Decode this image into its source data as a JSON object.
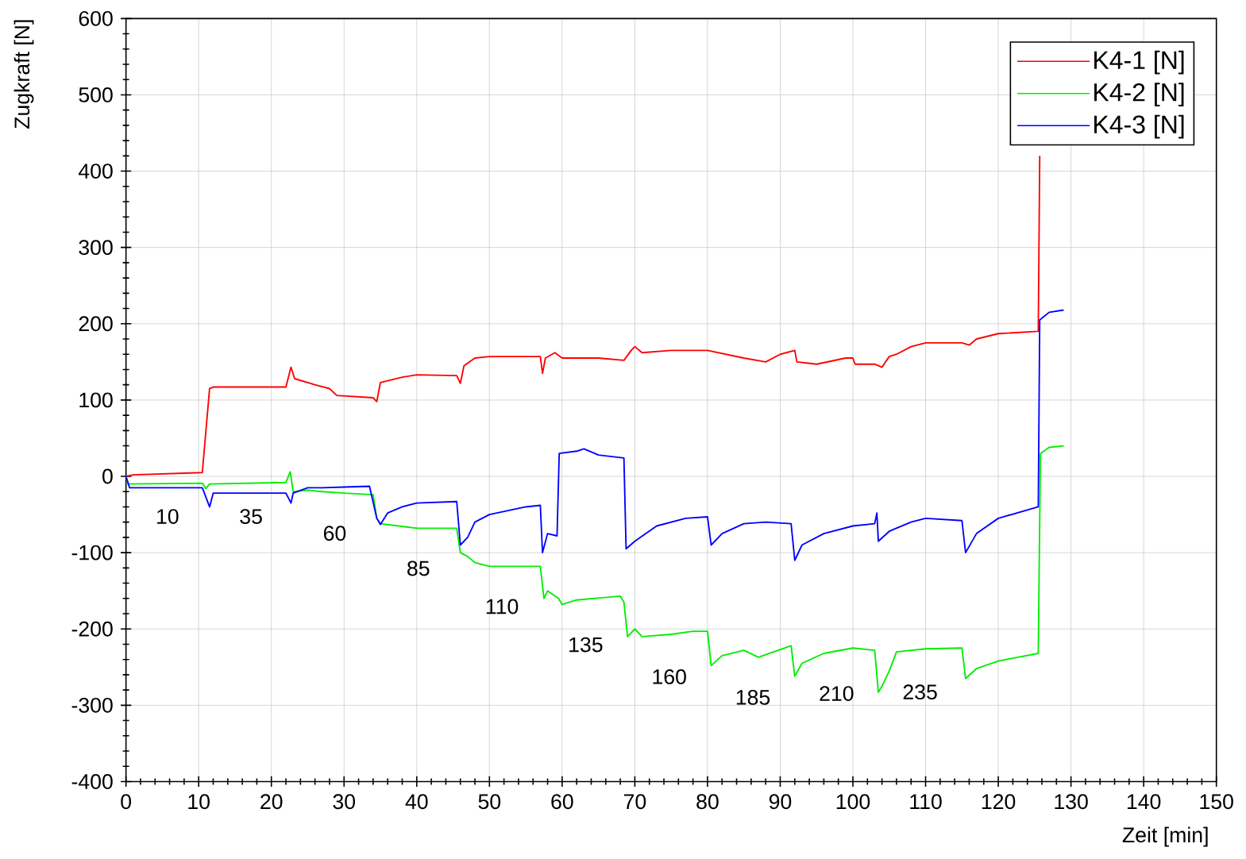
{
  "chart_data": {
    "type": "line",
    "xlabel": "Zeit [min]",
    "ylabel": "Zugkraft [N]",
    "xlim": [
      0,
      150
    ],
    "xticks": [
      0,
      10,
      20,
      30,
      40,
      50,
      60,
      70,
      80,
      90,
      100,
      110,
      120,
      130,
      140,
      150
    ],
    "ylim": [
      -400,
      600
    ],
    "yticks": [
      -400,
      -300,
      -200,
      -100,
      0,
      100,
      200,
      300,
      400,
      500,
      600
    ],
    "grid": true,
    "legend": "top right",
    "line_style": "solid",
    "marker": "none",
    "series": [
      {
        "name": "K4-1 [N]",
        "color": "#ff0000",
        "x": [
          0,
          1,
          10.5,
          11.5,
          12,
          22,
          22.7,
          23.2,
          26,
          28,
          29,
          34,
          34.5,
          35,
          38,
          40,
          45.5,
          46,
          46.5,
          48,
          50,
          57,
          57.3,
          57.7,
          59,
          60,
          65,
          68.5,
          69.5,
          70,
          71,
          75,
          80,
          85,
          88,
          90,
          92,
          92.3,
          95,
          99,
          100,
          100.3,
          103,
          104,
          105,
          106,
          108,
          110,
          115,
          116,
          117,
          120,
          125.5,
          125.7
        ],
        "values": [
          0,
          2,
          5,
          115,
          117,
          117,
          143,
          128,
          120,
          115,
          106,
          103,
          98,
          123,
          130,
          133,
          132,
          122,
          145,
          155,
          157,
          157,
          135,
          155,
          162,
          155,
          155,
          152,
          165,
          170,
          162,
          165,
          165,
          155,
          150,
          160,
          165,
          150,
          147,
          155,
          155,
          147,
          147,
          143,
          157,
          160,
          170,
          175,
          175,
          172,
          180,
          187,
          190,
          420
        ]
      },
      {
        "name": "K4-2 [N]",
        "color": "#00ee00",
        "x": [
          0,
          0.3,
          10.5,
          11,
          11.5,
          22,
          22.6,
          23,
          25,
          27,
          30,
          34,
          34.5,
          35,
          40,
          45.5,
          46,
          47,
          48,
          50,
          57,
          57.5,
          58,
          59.5,
          60,
          62,
          68,
          68.5,
          69,
          70,
          71,
          75,
          78,
          80,
          80.5,
          82,
          85,
          87,
          91.5,
          92,
          93,
          96,
          100,
          103,
          103.5,
          104,
          105,
          106,
          110,
          115,
          115.5,
          117,
          120,
          125.5,
          125.8,
          127,
          129
        ],
        "values": [
          0,
          -10,
          -9,
          -16,
          -10,
          -8,
          6,
          -20,
          -18,
          -20,
          -22,
          -24,
          -55,
          -62,
          -68,
          -68,
          -100,
          -105,
          -113,
          -118,
          -118,
          -160,
          -150,
          -160,
          -168,
          -162,
          -157,
          -165,
          -210,
          -200,
          -210,
          -207,
          -203,
          -203,
          -248,
          -235,
          -228,
          -237,
          -222,
          -262,
          -245,
          -232,
          -225,
          -228,
          -283,
          -275,
          -255,
          -230,
          -226,
          -225,
          -265,
          -252,
          -242,
          -232,
          30,
          38,
          40
        ]
      },
      {
        "name": "K4-3 [N]",
        "color": "#0000ff",
        "x": [
          0,
          0.5,
          10.5,
          11.5,
          12,
          22,
          22.7,
          23,
          25,
          27,
          30,
          33.5,
          34.5,
          35,
          36,
          38,
          40,
          45.5,
          46,
          47,
          48,
          50,
          55,
          57,
          57.3,
          58,
          59.3,
          59.6,
          62,
          63,
          65,
          68.5,
          68.8,
          70,
          73,
          77,
          80,
          80.5,
          82,
          85,
          88,
          91.5,
          92,
          93,
          96,
          100,
          103,
          103.3,
          103.5,
          105,
          108,
          110,
          115,
          115.5,
          117,
          120,
          125.5,
          125.7,
          127,
          129
        ],
        "values": [
          0,
          -15,
          -15,
          -40,
          -22,
          -22,
          -35,
          -22,
          -15,
          -15,
          -14,
          -13,
          -55,
          -63,
          -48,
          -40,
          -35,
          -33,
          -90,
          -80,
          -60,
          -50,
          -40,
          -38,
          -100,
          -75,
          -78,
          30,
          33,
          36,
          28,
          24,
          -95,
          -85,
          -65,
          -55,
          -53,
          -90,
          -75,
          -62,
          -60,
          -62,
          -110,
          -90,
          -75,
          -65,
          -62,
          -48,
          -85,
          -72,
          -60,
          -55,
          -58,
          -100,
          -75,
          -55,
          -40,
          205,
          215,
          218
        ]
      }
    ],
    "annotations": [
      "10",
      "35",
      "60",
      "85",
      "110",
      "135",
      "160",
      "185",
      "210",
      "235"
    ]
  }
}
